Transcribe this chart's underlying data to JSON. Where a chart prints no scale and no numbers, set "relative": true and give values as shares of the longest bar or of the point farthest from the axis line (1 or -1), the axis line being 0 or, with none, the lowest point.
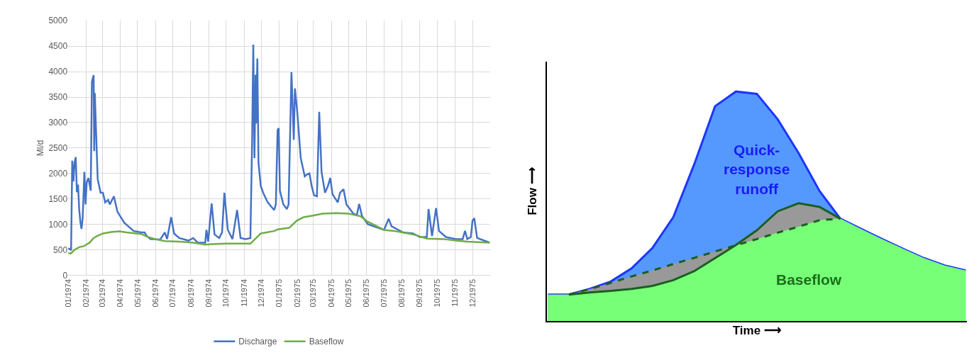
{
  "chart_data": [
    {
      "type": "line",
      "ylabel": "Ml/d",
      "xlim": [
        "1974-01-01",
        "1975-12-31"
      ],
      "xticks": [
        {
          "value": "1974-01-01",
          "label": "01/1974"
        },
        {
          "value": "1974-02-01",
          "label": "02/1974"
        },
        {
          "value": "1974-03-01",
          "label": "03/1974"
        },
        {
          "value": "1974-04-01",
          "label": "04/1974"
        },
        {
          "value": "1974-05-01",
          "label": "05/1974"
        },
        {
          "value": "1974-06-01",
          "label": "06/1974"
        },
        {
          "value": "1974-07-01",
          "label": "07/1974"
        },
        {
          "value": "1974-08-01",
          "label": "08/1974"
        },
        {
          "value": "1974-09-01",
          "label": "09/1974"
        },
        {
          "value": "1974-10-01",
          "label": "10/1974"
        },
        {
          "value": "1974-11-01",
          "label": "11/1974"
        },
        {
          "value": "1974-12-01",
          "label": "12/1974"
        },
        {
          "value": "1975-01-01",
          "label": "01/1975"
        },
        {
          "value": "1975-02-01",
          "label": "02/1975"
        },
        {
          "value": "1975-03-01",
          "label": "03/1975"
        },
        {
          "value": "1975-04-01",
          "label": "04/1975"
        },
        {
          "value": "1975-05-01",
          "label": "05/1975"
        },
        {
          "value": "1975-06-01",
          "label": "06/1975"
        },
        {
          "value": "1975-07-01",
          "label": "07/1975"
        },
        {
          "value": "1975-08-01",
          "label": "08/1975"
        },
        {
          "value": "1975-09-01",
          "label": "09/1975"
        },
        {
          "value": "1975-10-01",
          "label": "10/1975"
        },
        {
          "value": "1975-11-01",
          "label": "11/1975"
        },
        {
          "value": "1975-12-01",
          "label": "12/1975"
        }
      ],
      "ylim": [
        0,
        5000
      ],
      "yticks": [
        0,
        500,
        1000,
        1500,
        2000,
        2500,
        3000,
        3500,
        4000,
        4500,
        5000
      ],
      "grid": true,
      "legend": "bottom",
      "series": [
        {
          "name": "Discharge",
          "color": "#4472c4",
          "x": [
            "1974-01-01",
            "1974-01-03",
            "1974-01-06",
            "1974-01-08",
            "1974-01-10",
            "1974-01-12",
            "1974-01-14",
            "1974-01-16",
            "1974-01-18",
            "1974-01-20",
            "1974-01-22",
            "1974-01-24",
            "1974-01-26",
            "1974-01-29",
            "1974-01-31",
            "1974-02-02",
            "1974-02-05",
            "1974-02-09",
            "1974-02-11",
            "1974-02-14",
            "1974-02-15",
            "1974-02-16",
            "1974-02-18",
            "1974-02-21",
            "1974-02-26",
            "1974-03-02",
            "1974-03-06",
            "1974-03-11",
            "1974-03-14",
            "1974-03-21",
            "1974-03-27",
            "1974-04-08",
            "1974-04-24",
            "1974-05-07",
            "1974-05-13",
            "1974-05-17",
            "1974-05-23",
            "1974-06-09",
            "1974-06-17",
            "1974-06-21",
            "1974-06-28",
            "1974-07-03",
            "1974-07-12",
            "1974-07-28",
            "1974-08-05",
            "1974-08-13",
            "1974-08-26",
            "1974-08-28",
            "1974-08-31",
            "1974-09-06",
            "1974-09-11",
            "1974-09-19",
            "1974-09-24",
            "1974-09-28",
            "1974-10-04",
            "1974-10-12",
            "1974-10-20",
            "1974-10-26",
            "1974-11-04",
            "1974-11-12",
            "1974-11-15",
            "1974-11-17",
            "1974-11-19",
            "1974-11-21",
            "1974-11-22",
            "1974-11-24",
            "1974-11-26",
            "1974-11-30",
            "1974-12-04",
            "1974-12-12",
            "1974-12-20",
            "1974-12-23",
            "1974-12-26",
            "1974-12-29",
            "1974-12-31",
            "1975-01-02",
            "1975-01-08",
            "1975-01-14",
            "1975-01-17",
            "1975-01-22",
            "1975-01-26",
            "1975-01-28",
            "1975-02-01",
            "1975-02-07",
            "1975-02-14",
            "1975-02-18",
            "1975-02-22",
            "1975-02-26",
            "1975-03-02",
            "1975-03-07",
            "1975-03-11",
            "1975-03-15",
            "1975-03-21",
            "1975-03-26",
            "1975-03-30",
            "1975-04-03",
            "1975-04-12",
            "1975-04-16",
            "1975-04-22",
            "1975-04-27",
            "1975-05-09",
            "1975-05-15",
            "1975-05-19",
            "1975-05-24",
            "1975-06-03",
            "1975-07-01",
            "1975-07-09",
            "1975-07-14",
            "1975-08-03",
            "1975-08-20",
            "1975-09-01",
            "1975-09-13",
            "1975-09-16",
            "1975-09-22",
            "1975-09-29",
            "1975-10-04",
            "1975-10-16",
            "1975-11-02",
            "1975-11-14",
            "1975-11-18",
            "1975-11-22",
            "1975-11-28",
            "1975-12-01",
            "1975-12-04",
            "1975-12-09",
            "1975-12-21",
            "1975-12-31"
          ],
          "values": [
            530,
            520,
            490,
            2250,
            1840,
            2210,
            2320,
            1630,
            1780,
            1300,
            1050,
            910,
            1120,
            2030,
            1390,
            1820,
            1910,
            1660,
            3800,
            3930,
            2440,
            3580,
            2890,
            1890,
            1620,
            1620,
            1430,
            1480,
            1390,
            1550,
            1250,
            1030,
            870,
            840,
            840,
            770,
            710,
            700,
            840,
            710,
            1140,
            820,
            730,
            680,
            730,
            640,
            640,
            890,
            660,
            1410,
            800,
            730,
            840,
            1620,
            890,
            710,
            1280,
            730,
            710,
            730,
            2660,
            4530,
            2300,
            3940,
            2980,
            4260,
            2210,
            1750,
            1620,
            1430,
            1320,
            1280,
            1390,
            2850,
            2890,
            1660,
            1390,
            1300,
            1390,
            3990,
            2660,
            3670,
            3210,
            2300,
            1940,
            1980,
            2000,
            1750,
            1570,
            1550,
            3210,
            2030,
            1620,
            1750,
            1910,
            1590,
            1430,
            1620,
            1690,
            1390,
            1210,
            1180,
            1400,
            1160,
            1000,
            890,
            1110,
            960,
            840,
            820,
            750,
            750,
            1300,
            770,
            1320,
            870,
            750,
            710,
            710,
            870,
            710,
            750,
            1070,
            1120,
            730,
            680,
            640
          ]
        },
        {
          "name": "Baseflow",
          "color": "#70ad47",
          "x": [
            "1974-01-01",
            "1974-01-06",
            "1974-01-12",
            "1974-01-20",
            "1974-01-28",
            "1974-02-07",
            "1974-02-14",
            "1974-02-20",
            "1974-03-02",
            "1974-03-18",
            "1974-03-31",
            "1974-04-12",
            "1974-05-07",
            "1974-05-19",
            "1974-05-31",
            "1974-06-17",
            "1974-07-12",
            "1974-08-05",
            "1974-08-26",
            "1974-09-07",
            "1974-10-02",
            "1974-10-18",
            "1974-11-12",
            "1974-11-22",
            "1974-11-30",
            "1974-12-24",
            "1974-12-29",
            "1975-01-18",
            "1975-01-31",
            "1975-02-12",
            "1975-02-28",
            "1975-03-17",
            "1975-04-10",
            "1975-05-01",
            "1975-05-21",
            "1975-06-03",
            "1975-07-01",
            "1975-07-18",
            "1975-08-12",
            "1975-08-24",
            "1975-09-13",
            "1975-10-12",
            "1975-11-02",
            "1975-11-22",
            "1975-12-31"
          ],
          "values": [
            430,
            430,
            500,
            550,
            570,
            640,
            730,
            770,
            820,
            850,
            860,
            840,
            810,
            750,
            710,
            670,
            660,
            640,
            600,
            610,
            620,
            620,
            620,
            730,
            820,
            870,
            900,
            930,
            1070,
            1140,
            1170,
            1210,
            1220,
            1210,
            1160,
            1050,
            890,
            870,
            820,
            790,
            720,
            710,
            680,
            660,
            640
          ]
        }
      ]
    },
    {
      "type": "area",
      "relative": true,
      "xlabel": "Time ⟶",
      "ylabel": "Flow ⟶",
      "tick_labels": false,
      "categories": [
        null,
        null,
        null,
        null,
        null,
        null,
        null,
        null,
        null,
        null,
        null,
        null,
        null,
        null,
        null,
        null,
        null,
        null,
        null,
        null,
        null
      ],
      "annotations": [
        "Quick-\nresponse\nrunoff",
        "Baseflow"
      ],
      "series": [
        {
          "type": "area",
          "color": "#5599ff",
          "values": [
            0.115,
            0.115,
            0.14,
            0.172,
            0.229,
            0.318,
            0.452,
            0.682,
            0.936,
            1.0,
            0.99,
            0.879,
            0.732,
            0.567,
            0.446,
            0.401,
            0.357,
            0.315,
            0.274,
            0.242,
            0.22
          ]
        },
        {
          "type": "area",
          "color": "#999999",
          "values": [
            0.115,
            0.115,
            0.139,
            0.166,
            0.194,
            0.22,
            0.248,
            0.275,
            0.303,
            0.331,
            0.395,
            0.478,
            0.513,
            0.497,
            0.446,
            null,
            null,
            null,
            null,
            null,
            null
          ]
        },
        {
          "type": "area",
          "color": "#77ff77",
          "values": [
            0.115,
            0.115,
            0.124,
            0.131,
            0.14,
            0.153,
            0.178,
            0.217,
            0.274,
            0.33,
            0.357,
            0.385,
            0.411,
            0.439,
            0.446,
            0.401,
            0.357,
            0.315,
            0.274,
            0.242,
            0.22
          ]
        },
        {
          "type": "line",
          "color": "#1b5e20",
          "line_style": "solid",
          "values": [
            null,
            0.115,
            0.124,
            0.131,
            0.14,
            0.153,
            0.178,
            0.217,
            0.274,
            0.331,
            0.395,
            0.478,
            0.513,
            0.497,
            0.446,
            null,
            null,
            null,
            null,
            null,
            null
          ]
        },
        {
          "type": "line",
          "color": "#1b5e20",
          "line_style": "dashed",
          "values": [
            null,
            0.115,
            0.139,
            0.166,
            0.194,
            0.22,
            0.248,
            0.275,
            0.303,
            0.33,
            0.357,
            0.385,
            0.411,
            0.439,
            0.446,
            null,
            null,
            null,
            null,
            null,
            null
          ]
        }
      ]
    }
  ]
}
